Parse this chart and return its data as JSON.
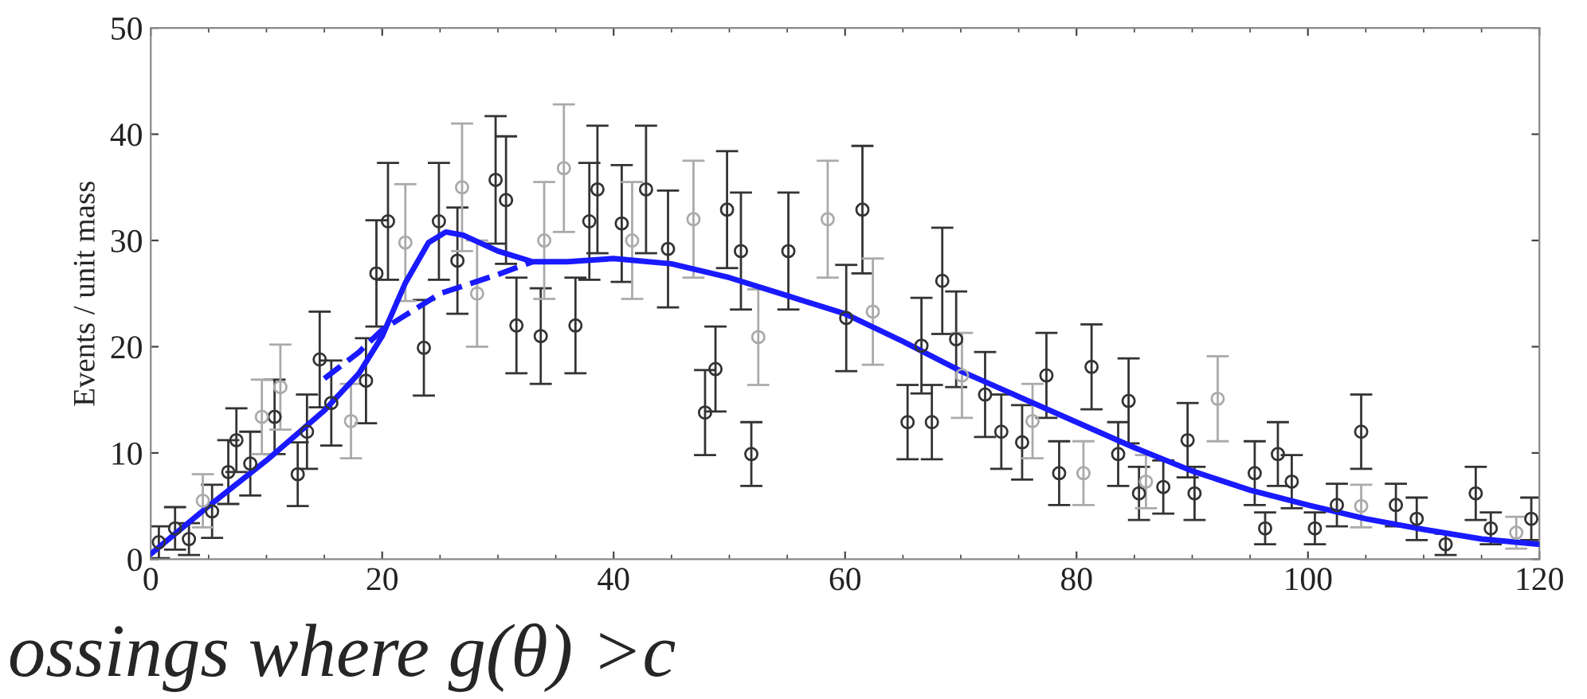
{
  "chart_data": {
    "type": "scatter",
    "ylabel": "Events / unit mass",
    "xlim": [
      0,
      120
    ],
    "xticks": [
      0,
      20,
      40,
      60,
      80,
      100,
      120
    ],
    "ylim": [
      0,
      50
    ],
    "yticks": [
      0,
      10,
      20,
      30,
      40,
      50
    ],
    "grid": false,
    "legend": false,
    "annotations": [
      "ossings where g(θ) >c"
    ],
    "series": [
      {
        "color": "#333333",
        "marker": "circle",
        "x": [
          0.7,
          2.1,
          3.3,
          5.3,
          6.7,
          7.4,
          8.6,
          10.7,
          12.7,
          13.5,
          14.6,
          15.6,
          18.6,
          19.5,
          20.5,
          23.6,
          24.9,
          26.5,
          29.8,
          30.7,
          31.6,
          33.7,
          36.7,
          37.9,
          38.6,
          40.7,
          42.8,
          44.7,
          47.9,
          48.8,
          49.8,
          51.0,
          51.9,
          55.1,
          60.1,
          61.5,
          65.4,
          66.6,
          67.5,
          68.4,
          69.6,
          72.1,
          73.5,
          75.3,
          77.4,
          78.5,
          81.3,
          83.6,
          84.5,
          85.4,
          87.5,
          89.6,
          90.2,
          95.4,
          96.3,
          97.4,
          98.6,
          100.6,
          102.5,
          104.6,
          107.6,
          109.4,
          111.9,
          114.5,
          115.8,
          119.3
        ],
        "values": [
          1.6,
          2.9,
          1.9,
          4.5,
          8.2,
          11.2,
          9.0,
          13.4,
          8.0,
          12.0,
          18.8,
          14.7,
          16.8,
          26.9,
          31.8,
          19.9,
          31.8,
          28.1,
          35.7,
          33.8,
          22.0,
          21.0,
          22.0,
          31.8,
          34.8,
          31.6,
          34.8,
          29.2,
          13.8,
          17.9,
          32.9,
          29.0,
          9.9,
          29.0,
          22.7,
          32.9,
          12.9,
          20.1,
          12.9,
          26.2,
          20.7,
          15.5,
          12.0,
          11.0,
          17.3,
          8.1,
          18.1,
          9.9,
          14.9,
          6.2,
          6.8,
          11.2,
          6.2,
          8.1,
          2.9,
          9.9,
          7.3,
          2.9,
          5.1,
          12.0,
          5.1,
          3.8,
          1.4,
          6.2,
          2.9,
          3.8
        ],
        "errors": [
          1.5,
          2,
          1.5,
          2.5,
          3,
          3,
          3,
          3.5,
          3,
          3.5,
          4.5,
          4,
          4,
          5,
          5.5,
          4.5,
          5.5,
          5,
          6,
          6,
          4.5,
          4.5,
          4.5,
          5.5,
          6,
          5.5,
          6,
          5.5,
          4,
          4,
          5.5,
          5.5,
          3,
          5.5,
          5,
          6,
          3.5,
          4.5,
          3.5,
          5,
          4.5,
          4,
          3.5,
          3.5,
          4,
          3,
          4,
          3,
          4,
          2.5,
          2.5,
          3.5,
          2.5,
          3,
          1.5,
          3,
          2.5,
          1.5,
          2,
          3.5,
          2,
          2,
          1,
          2.5,
          1.5,
          2
        ]
      },
      {
        "color": "#aaaaaa",
        "marker": "circle",
        "x": [
          4.5,
          9.6,
          11.2,
          17.3,
          22.0,
          26.9,
          28.2,
          34.0,
          35.7,
          41.6,
          46.9,
          52.5,
          58.5,
          62.4,
          70.1,
          76.2,
          80.6,
          86.0,
          92.2,
          104.6,
          118.0
        ],
        "values": [
          5.5,
          13.4,
          16.2,
          13.0,
          29.8,
          35.0,
          25.0,
          30.0,
          36.8,
          30.0,
          32.0,
          20.9,
          32.0,
          23.3,
          17.3,
          13.0,
          8.1,
          7.3,
          15.1,
          5.0,
          2.5
        ],
        "errors": [
          2.5,
          3.5,
          4,
          3.5,
          5.5,
          6,
          5,
          5.5,
          6,
          5.5,
          5.5,
          4.5,
          5.5,
          5,
          4,
          3.5,
          3,
          2.5,
          4,
          2,
          1.5
        ]
      },
      {
        "type": "line",
        "color": "#1a1aff",
        "line_style": "solid",
        "x": [
          0,
          5,
          10,
          15,
          18,
          20,
          22,
          24,
          25.5,
          27,
          30,
          33,
          36,
          40,
          45,
          50,
          55,
          60,
          65,
          70,
          75,
          80,
          85,
          90,
          95,
          100,
          105,
          110,
          115,
          120
        ],
        "values": [
          0.5,
          5,
          9.3,
          14,
          17.5,
          21,
          26,
          29.8,
          30.8,
          30.5,
          29,
          28,
          28,
          28.3,
          27.8,
          26.5,
          24.8,
          23.1,
          20.5,
          17.7,
          15.3,
          12.9,
          10.5,
          8.3,
          6.5,
          5.1,
          3.8,
          2.8,
          1.9,
          1.4
        ]
      },
      {
        "type": "line",
        "color": "#1a1aff",
        "line_style": "dashed",
        "x": [
          15,
          18,
          20,
          25,
          30,
          33
        ],
        "values": [
          17,
          19.5,
          21.6,
          25,
          26.8,
          28
        ]
      }
    ]
  }
}
